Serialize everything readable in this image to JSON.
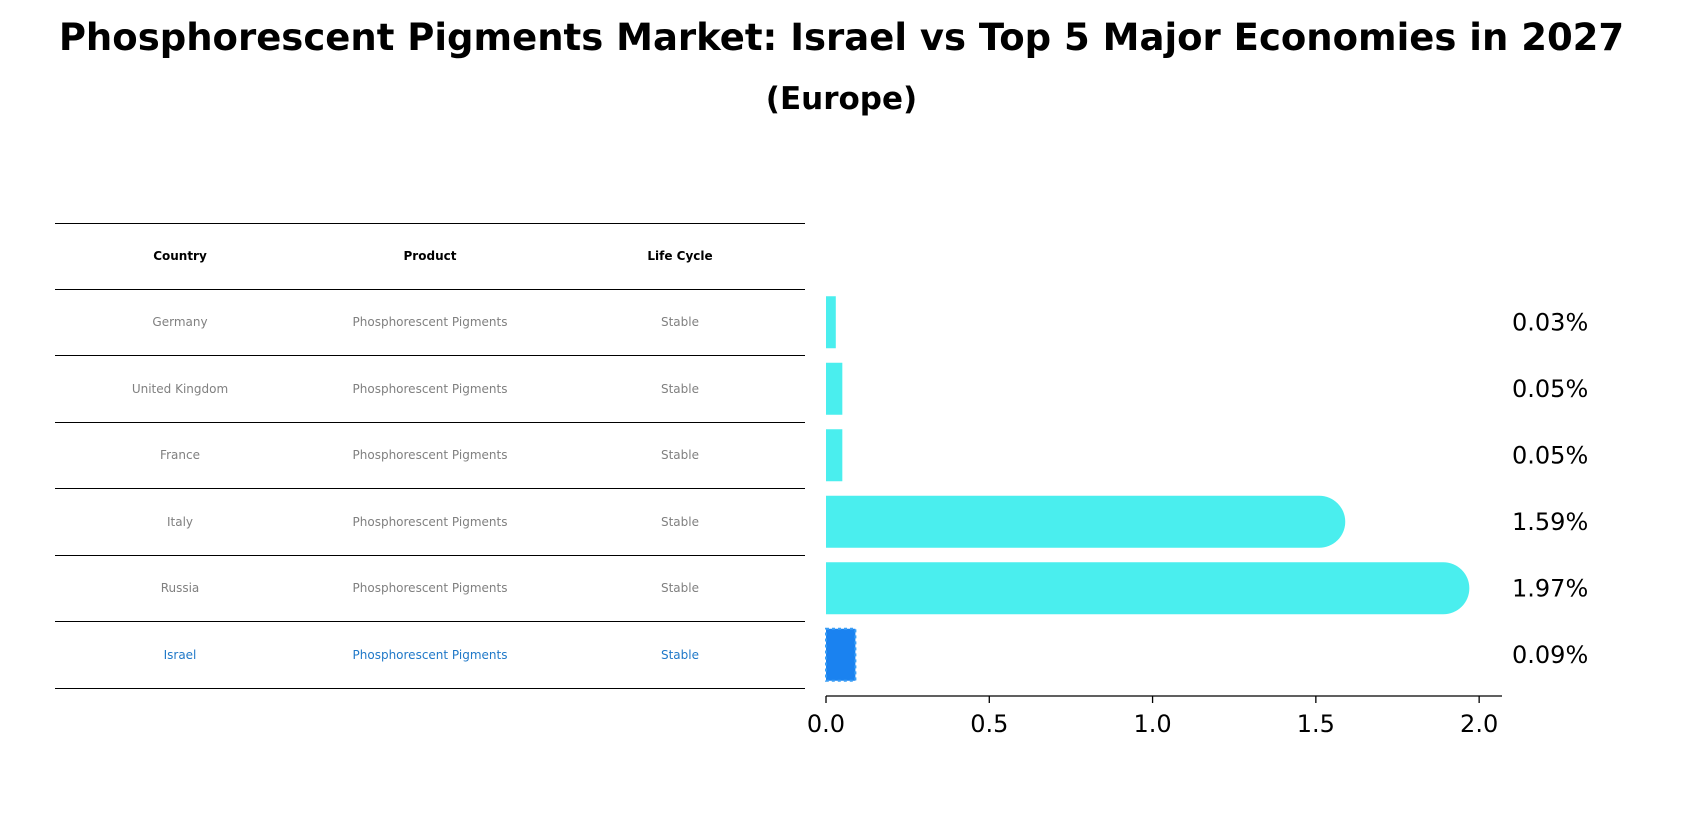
{
  "title": "Phosphorescent Pigments Market: Israel vs Top 5 Major Economies in 2027",
  "subtitle": "(Europe)",
  "table": {
    "headers": {
      "country": "Country",
      "product": "Product",
      "life_cycle": "Life Cycle"
    },
    "rows": [
      {
        "country": "Germany",
        "product": "Phosphorescent Pigments",
        "life_cycle": "Stable"
      },
      {
        "country": "United Kingdom",
        "product": "Phosphorescent Pigments",
        "life_cycle": "Stable"
      },
      {
        "country": "France",
        "product": "Phosphorescent Pigments",
        "life_cycle": "Stable"
      },
      {
        "country": "Italy",
        "product": "Phosphorescent Pigments",
        "life_cycle": "Stable"
      },
      {
        "country": "Russia",
        "product": "Phosphorescent Pigments",
        "life_cycle": "Stable"
      },
      {
        "country": "Israel",
        "product": "Phosphorescent Pigments",
        "life_cycle": "Stable"
      }
    ]
  },
  "chart_data": {
    "type": "bar",
    "orientation": "horizontal",
    "categories": [
      "Germany",
      "United Kingdom",
      "France",
      "Italy",
      "Russia",
      "Israel"
    ],
    "values": [
      0.03,
      0.05,
      0.05,
      1.59,
      1.97,
      0.09
    ],
    "value_labels": [
      "0.03%",
      "0.05%",
      "0.05%",
      "1.59%",
      "1.97%",
      "0.09%"
    ],
    "highlight": "Israel",
    "xlim": [
      0,
      2.07
    ],
    "xticks": [
      0.0,
      0.5,
      1.0,
      1.5,
      2.0
    ],
    "xtick_labels": [
      "0.0",
      "0.5",
      "1.0",
      "1.5",
      "2.0"
    ],
    "colors": {
      "default": "#4aeeee",
      "highlight": "#1a82f0"
    }
  }
}
